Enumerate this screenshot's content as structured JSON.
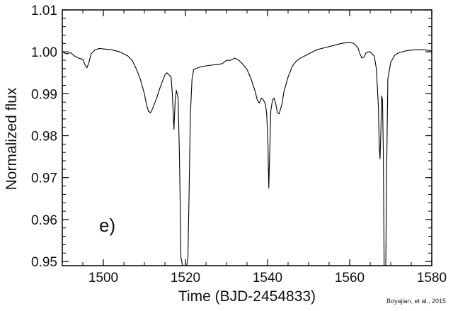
{
  "chart_data": {
    "type": "line",
    "title": "",
    "xlabel": "Time (BJD-2454833)",
    "ylabel": "Normalized flux",
    "xlim": [
      1490,
      1580
    ],
    "ylim": [
      0.949,
      1.01
    ],
    "xticks": [
      "1500",
      "1520",
      "1540",
      "1560",
      "1580"
    ],
    "yticks": [
      "0.95",
      "0.96",
      "0.97",
      "0.98",
      "0.99",
      "1.00",
      "1.01"
    ],
    "grid": false,
    "legend": "none",
    "panel_label": "e)",
    "credit": "Boyajian, et al., 2015",
    "line_color": "#000000",
    "series": [
      {
        "x": [
          1490,
          1491,
          1492,
          1493,
          1494,
          1495,
          1495.5,
          1496,
          1496.5,
          1497,
          1498,
          1499,
          1500,
          1502,
          1504,
          1505,
          1506,
          1507,
          1508,
          1509,
          1510,
          1510.5,
          1511,
          1511.5,
          1512,
          1513,
          1514,
          1515,
          1515.5,
          1516,
          1516.5,
          1516.8,
          1517.2,
          1517.5,
          1517.8,
          1518.2,
          1518.5,
          1518.7,
          1518.9,
          1519.3,
          1519.6,
          1519.9,
          1520.3,
          1520.6,
          1520.9,
          1521.2,
          1521.6,
          1522,
          1524,
          1526,
          1528,
          1529,
          1530,
          1531,
          1532,
          1533,
          1534,
          1535,
          1536,
          1537,
          1537.5,
          1538,
          1538.5,
          1539,
          1539.5,
          1539.8,
          1540.1,
          1540.3,
          1540.5,
          1540.8,
          1541.2,
          1541.6,
          1542,
          1542.4,
          1542.8,
          1543.5,
          1544,
          1545,
          1546,
          1547,
          1548,
          1550,
          1552,
          1554,
          1556,
          1558,
          1560,
          1561,
          1562,
          1562.5,
          1563,
          1563.5,
          1564,
          1564.5,
          1565,
          1566,
          1566.5,
          1567,
          1567.2,
          1567.4,
          1567.6,
          1567.8,
          1568.0,
          1568.2,
          1568.4,
          1568.6,
          1568.8,
          1569,
          1569.3,
          1570,
          1571,
          1572,
          1574,
          1576,
          1578,
          1580
        ],
        "y": [
          1.0,
          0.9995,
          0.9998,
          0.999,
          0.9985,
          0.9982,
          0.997,
          0.9962,
          0.9975,
          0.9995,
          1.0005,
          1.0008,
          1.0007,
          1.0005,
          1.0,
          0.9995,
          0.999,
          0.998,
          0.996,
          0.9935,
          0.99,
          0.9875,
          0.9858,
          0.9855,
          0.9865,
          0.989,
          0.992,
          0.9945,
          0.995,
          0.9945,
          0.994,
          0.99,
          0.9815,
          0.9885,
          0.9908,
          0.989,
          0.977,
          0.965,
          0.951,
          0.9485,
          0.9485,
          0.9485,
          0.9485,
          0.951,
          0.967,
          0.985,
          0.9935,
          0.9958,
          0.9965,
          0.9968,
          0.997,
          0.9972,
          0.998,
          0.998,
          0.9985,
          0.998,
          0.997,
          0.9958,
          0.9935,
          0.9905,
          0.9885,
          0.9878,
          0.989,
          0.9885,
          0.9875,
          0.985,
          0.978,
          0.9675,
          0.975,
          0.986,
          0.9885,
          0.989,
          0.9875,
          0.9855,
          0.9852,
          0.9875,
          0.9905,
          0.994,
          0.9965,
          0.9978,
          0.9985,
          0.9995,
          1.0005,
          1.001,
          1.0015,
          1.002,
          1.0023,
          1.002,
          1.001,
          0.9995,
          0.9985,
          0.9988,
          0.9998,
          1.0,
          1.0,
          0.999,
          0.996,
          0.987,
          0.9775,
          0.9745,
          0.981,
          0.9895,
          0.9885,
          0.976,
          0.949,
          0.9485,
          0.9485,
          0.971,
          0.9935,
          0.9975,
          0.9992,
          0.9998,
          1.0003,
          1.0005,
          1.0005,
          1.0002
        ]
      }
    ]
  }
}
